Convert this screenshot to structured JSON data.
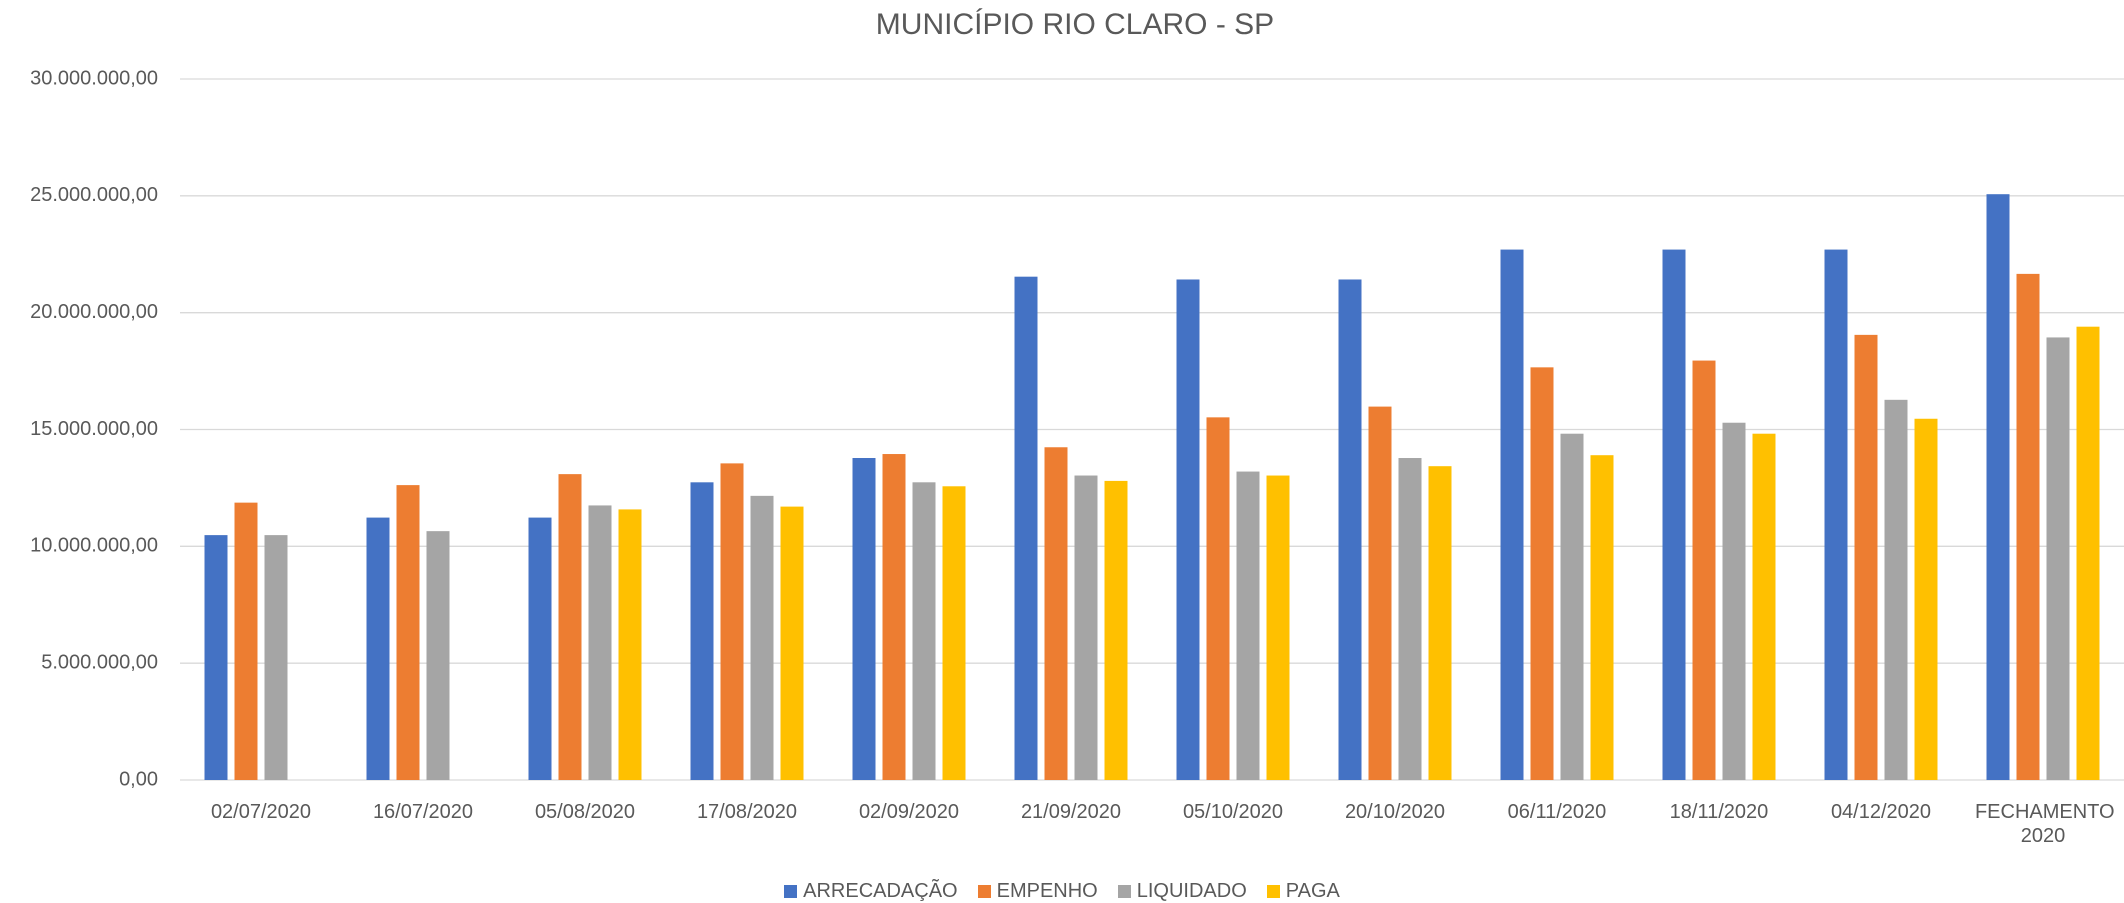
{
  "chart_data": {
    "type": "bar",
    "title": "MUNICÍPIO RIO CLARO - SP",
    "categories": [
      "02/07/2020",
      "16/07/2020",
      "05/08/2020",
      "17/08/2020",
      "02/09/2020",
      "21/09/2020",
      "05/10/2020",
      "20/10/2020",
      "06/11/2020",
      "18/11/2020",
      "04/12/2020",
      "FECHAMENTO 2020"
    ],
    "series": [
      {
        "name": "ARRECADAÇÃO",
        "color": "#4472c4",
        "values": [
          10480000,
          11230000,
          11230000,
          12740000,
          13780000,
          21540000,
          21420000,
          21420000,
          22700000,
          22700000,
          22700000,
          25070000
        ]
      },
      {
        "name": "EMPENHO",
        "color": "#ed7d31",
        "values": [
          11870000,
          12620000,
          13090000,
          13550000,
          13950000,
          14240000,
          15520000,
          15980000,
          17660000,
          17950000,
          19050000,
          21660000
        ]
      },
      {
        "name": "LIQUIDADO",
        "color": "#a5a5a5",
        "values": [
          10480000,
          10650000,
          11750000,
          12160000,
          12740000,
          13030000,
          13200000,
          13780000,
          14820000,
          15290000,
          16270000,
          18940000
        ]
      },
      {
        "name": "PAGA",
        "color": "#ffc000",
        "values": [
          null,
          null,
          11580000,
          11700000,
          12570000,
          12800000,
          13030000,
          13430000,
          13900000,
          14820000,
          15460000,
          19400000
        ]
      }
    ],
    "ylim": [
      0,
      30000000
    ],
    "yticks": [
      {
        "value": 0,
        "label": "0,00"
      },
      {
        "value": 5000000,
        "label": "5.000.000,00"
      },
      {
        "value": 10000000,
        "label": "10.000.000,00"
      },
      {
        "value": 15000000,
        "label": "15.000.000,00"
      },
      {
        "value": 20000000,
        "label": "20.000.000,00"
      },
      {
        "value": 25000000,
        "label": "25.000.000,00"
      },
      {
        "value": 30000000,
        "label": "30.000.000,00"
      }
    ],
    "grid": true,
    "legend": "bottom"
  }
}
